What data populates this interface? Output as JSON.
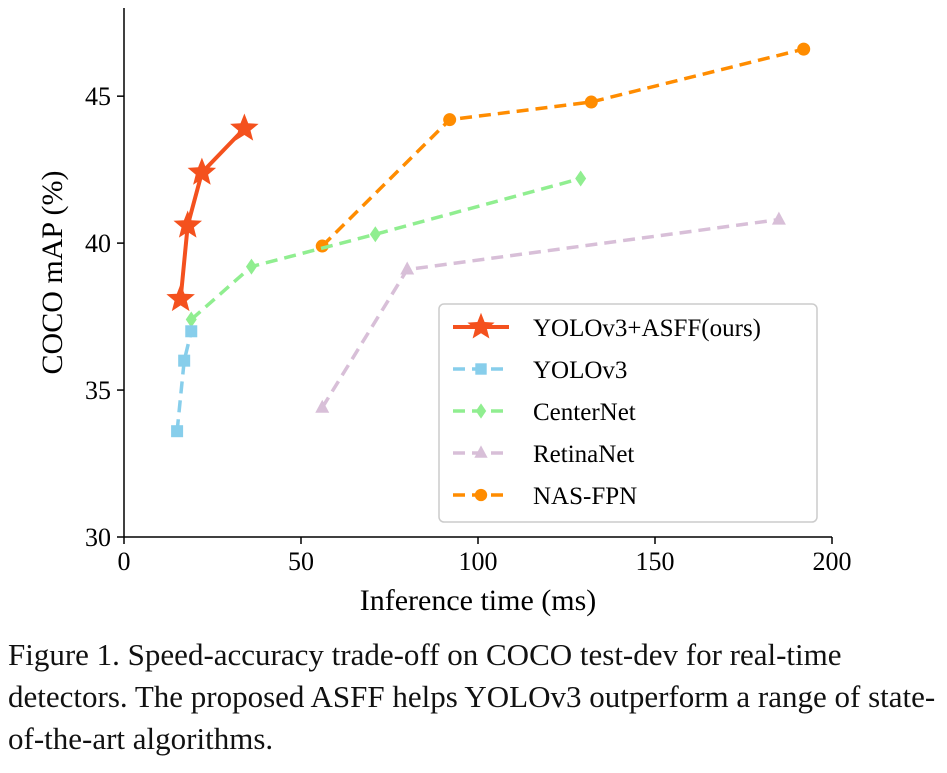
{
  "caption": "Figure 1. Speed-accuracy trade-off on COCO test-dev for real-time detectors. The proposed ASFF helps YOLOv3 outperform a range of state-of-the-art algorithms.",
  "chart_data": {
    "type": "line",
    "xlabel": "Inference time (ms)",
    "ylabel": "COCO mAP (%)",
    "xlim": [
      0,
      200
    ],
    "ylim": [
      30,
      48
    ],
    "xticks": [
      0,
      50,
      100,
      150,
      200
    ],
    "yticks": [
      30,
      35,
      40,
      45
    ],
    "grid": false,
    "legend_position": "lower-right",
    "series": [
      {
        "name": "YOLOv3+ASFF(ours)",
        "color": "#f4511e",
        "dash": "solid",
        "marker": "star",
        "x": [
          16,
          18,
          22,
          34
        ],
        "y": [
          38.1,
          40.6,
          42.4,
          43.9
        ]
      },
      {
        "name": "YOLOv3",
        "color": "#87ceeb",
        "dash": "dashed",
        "marker": "square",
        "x": [
          15,
          17,
          19
        ],
        "y": [
          33.6,
          36.0,
          37.0
        ]
      },
      {
        "name": "CenterNet",
        "color": "#90ee90",
        "dash": "dashed",
        "marker": "diamond",
        "x": [
          19,
          36,
          71,
          129
        ],
        "y": [
          37.4,
          39.2,
          40.3,
          42.2
        ]
      },
      {
        "name": "RetinaNet",
        "color": "#d8bfd8",
        "dash": "dashed",
        "marker": "triangle",
        "x": [
          56,
          80,
          185
        ],
        "y": [
          34.4,
          39.1,
          40.8
        ]
      },
      {
        "name": "NAS-FPN",
        "color": "#ff8c00",
        "dash": "dashed",
        "marker": "circle",
        "x": [
          56,
          92,
          132,
          192
        ],
        "y": [
          39.9,
          44.2,
          44.8,
          46.6
        ]
      }
    ]
  }
}
